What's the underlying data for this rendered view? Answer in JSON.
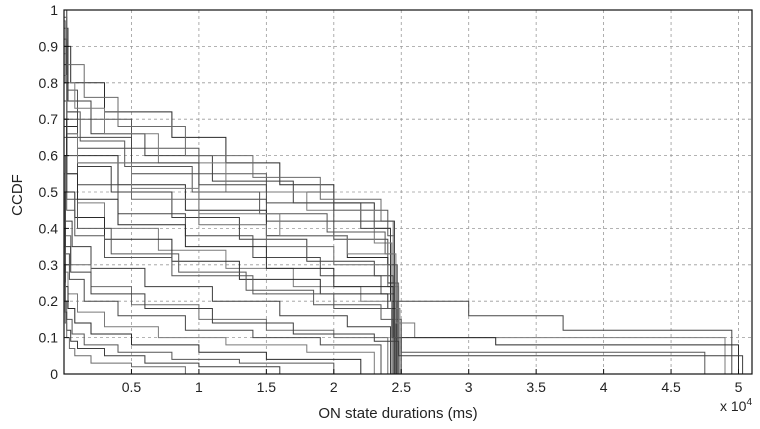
{
  "chart_data": {
    "type": "line",
    "title": "",
    "xlabel": "ON state durations (ms)",
    "ylabel": "CCDF",
    "x_multiplier_label": "x 10",
    "x_multiplier_exponent": "4",
    "xlim": [
      0,
      5.1
    ],
    "ylim": [
      0,
      1
    ],
    "x_unit_scale": 10000,
    "xticks": [
      0.5,
      1,
      1.5,
      2,
      2.5,
      3,
      3.5,
      4,
      4.5,
      5
    ],
    "xtick_labels": [
      "0.5",
      "1",
      "1.5",
      "2",
      "2.5",
      "3",
      "3.5",
      "4",
      "4.5",
      "5"
    ],
    "yticks": [
      0,
      0.1,
      0.2,
      0.3,
      0.4,
      0.5,
      0.6,
      0.7,
      0.8,
      0.9,
      1
    ],
    "ytick_labels": [
      "0",
      "0.1",
      "0.2",
      "0.3",
      "0.4",
      "0.5",
      "0.6",
      "0.7",
      "0.8",
      "0.9",
      "1"
    ],
    "grid": true,
    "legend": "none",
    "series_color": "#3a3a3a",
    "series": [
      {
        "x": [
          0,
          0.02,
          0.05,
          0.3,
          0.8,
          1.2,
          1.6,
          2.0,
          2.3,
          2.42,
          2.47
        ],
        "y": [
          1,
          0.9,
          0.8,
          0.72,
          0.65,
          0.58,
          0.52,
          0.47,
          0.4,
          0.2,
          0
        ]
      },
      {
        "x": [
          0,
          0.02,
          0.1,
          0.5,
          1.0,
          1.5,
          2.0,
          2.4,
          2.45,
          2.5
        ],
        "y": [
          0.98,
          0.78,
          0.7,
          0.62,
          0.55,
          0.5,
          0.45,
          0.38,
          0.15,
          0
        ]
      },
      {
        "x": [
          0,
          0.03,
          0.2,
          0.6,
          1.1,
          1.7,
          2.2,
          2.42,
          2.46
        ],
        "y": [
          0.95,
          0.75,
          0.66,
          0.6,
          0.53,
          0.47,
          0.4,
          0.3,
          0
        ]
      },
      {
        "x": [
          0,
          0.02,
          0.15,
          0.4,
          0.9,
          1.4,
          1.9,
          2.35,
          2.44,
          2.48
        ],
        "y": [
          1,
          0.85,
          0.76,
          0.68,
          0.6,
          0.54,
          0.48,
          0.42,
          0.25,
          0
        ]
      },
      {
        "x": [
          0,
          0.02,
          0.1,
          0.5,
          1.0,
          1.5,
          2.0,
          2.4,
          2.47
        ],
        "y": [
          0.9,
          0.7,
          0.62,
          0.55,
          0.48,
          0.42,
          0.37,
          0.3,
          0
        ]
      },
      {
        "x": [
          0,
          0.01,
          0.08,
          0.3,
          0.7,
          1.2,
          1.8,
          2.3,
          2.43,
          2.49
        ],
        "y": [
          0.97,
          0.8,
          0.73,
          0.66,
          0.58,
          0.5,
          0.45,
          0.36,
          0.18,
          0
        ]
      },
      {
        "x": [
          0,
          0.02,
          0.1,
          0.4,
          0.9,
          1.5,
          2.1,
          2.4,
          2.46
        ],
        "y": [
          0.85,
          0.68,
          0.6,
          0.52,
          0.45,
          0.38,
          0.32,
          0.25,
          0
        ]
      },
      {
        "x": [
          0,
          0.02,
          0.12,
          0.45,
          0.95,
          1.45,
          1.95,
          2.38,
          2.45
        ],
        "y": [
          0.92,
          0.72,
          0.64,
          0.57,
          0.5,
          0.44,
          0.39,
          0.33,
          0
        ]
      },
      {
        "x": [
          0,
          0.02,
          0.1,
          0.35,
          0.8,
          1.3,
          1.8,
          2.3,
          2.44
        ],
        "y": [
          0.8,
          0.65,
          0.57,
          0.5,
          0.43,
          0.37,
          0.31,
          0.27,
          0
        ]
      },
      {
        "x": [
          0,
          0.02,
          0.1,
          0.5,
          1.0,
          1.5,
          2.0,
          2.4,
          2.48
        ],
        "y": [
          0.88,
          0.66,
          0.58,
          0.48,
          0.41,
          0.35,
          0.3,
          0.24,
          0
        ]
      },
      {
        "x": [
          0,
          0.02,
          0.1,
          0.4,
          0.9,
          1.4,
          1.9,
          2.35,
          2.45
        ],
        "y": [
          0.75,
          0.6,
          0.52,
          0.44,
          0.38,
          0.32,
          0.27,
          0.22,
          0
        ]
      },
      {
        "x": [
          0,
          0.02,
          0.1,
          0.3,
          0.7,
          1.2,
          1.7,
          2.2,
          2.43
        ],
        "y": [
          0.7,
          0.55,
          0.47,
          0.4,
          0.34,
          0.29,
          0.24,
          0.2,
          0
        ]
      },
      {
        "x": [
          0,
          0.02,
          0.08,
          0.3,
          0.8,
          1.3,
          1.9,
          2.4,
          2.46
        ],
        "y": [
          0.68,
          0.5,
          0.43,
          0.37,
          0.31,
          0.26,
          0.22,
          0.18,
          0
        ]
      },
      {
        "x": [
          0,
          0.02,
          0.1,
          0.35,
          0.85,
          1.35,
          1.85,
          2.35,
          2.44
        ],
        "y": [
          0.65,
          0.48,
          0.4,
          0.33,
          0.28,
          0.23,
          0.19,
          0.15,
          0
        ]
      },
      {
        "x": [
          0,
          0.01,
          0.06,
          0.2,
          0.6,
          1.1,
          1.6,
          2.1,
          2.42
        ],
        "y": [
          0.6,
          0.42,
          0.35,
          0.29,
          0.24,
          0.2,
          0.16,
          0.13,
          0
        ]
      },
      {
        "x": [
          0,
          0.01,
          0.05,
          0.2,
          0.5,
          1.0,
          1.5,
          2.0,
          2.4
        ],
        "y": [
          0.55,
          0.38,
          0.3,
          0.24,
          0.19,
          0.15,
          0.12,
          0.1,
          0
        ]
      },
      {
        "x": [
          0,
          0.01,
          0.04,
          0.15,
          0.4,
          0.9,
          1.4,
          1.9,
          2.35
        ],
        "y": [
          0.5,
          0.33,
          0.26,
          0.2,
          0.16,
          0.12,
          0.1,
          0.08,
          0
        ]
      },
      {
        "x": [
          0,
          0.01,
          0.03,
          0.1,
          0.3,
          0.7,
          1.2,
          1.8,
          2.3
        ],
        "y": [
          0.45,
          0.28,
          0.22,
          0.17,
          0.13,
          0.1,
          0.08,
          0.06,
          0
        ]
      },
      {
        "x": [
          0,
          0.01,
          0.03,
          0.08,
          0.2,
          0.5,
          1.0,
          1.5,
          2.2
        ],
        "y": [
          0.4,
          0.24,
          0.18,
          0.14,
          0.11,
          0.08,
          0.06,
          0.04,
          0
        ]
      },
      {
        "x": [
          0,
          0.01,
          0.02,
          0.06,
          0.15,
          0.4,
          0.8,
          1.3,
          2.0
        ],
        "y": [
          0.35,
          0.2,
          0.15,
          0.11,
          0.08,
          0.06,
          0.04,
          0.03,
          0
        ]
      },
      {
        "x": [
          0,
          0.01,
          0.02,
          0.05,
          0.1,
          0.3,
          0.6,
          1.0,
          1.6
        ],
        "y": [
          0.3,
          0.17,
          0.12,
          0.09,
          0.07,
          0.05,
          0.03,
          0.02,
          0
        ]
      },
      {
        "x": [
          0,
          0.01,
          0.02,
          0.04,
          0.08,
          0.2,
          0.5,
          0.9
        ],
        "y": [
          0.25,
          0.14,
          0.1,
          0.07,
          0.05,
          0.03,
          0.02,
          0
        ]
      },
      {
        "x": [
          0,
          0.02,
          0.1,
          0.5,
          1.0,
          1.5,
          2.0,
          2.45,
          3.0,
          3.7,
          4.9,
          4.95
        ],
        "y": [
          0.9,
          0.72,
          0.65,
          0.58,
          0.52,
          0.47,
          0.42,
          0.2,
          0.16,
          0.12,
          0.12,
          0
        ]
      },
      {
        "x": [
          0,
          0.02,
          0.1,
          0.5,
          1.0,
          1.6,
          2.1,
          2.46,
          2.6,
          4.8,
          4.9
        ],
        "y": [
          0.82,
          0.66,
          0.58,
          0.51,
          0.44,
          0.38,
          0.33,
          0.14,
          0.1,
          0.1,
          0
        ]
      },
      {
        "x": [
          0,
          0.02,
          0.1,
          0.4,
          0.9,
          1.5,
          2.0,
          2.44,
          3.2,
          4.98,
          5.0
        ],
        "y": [
          0.7,
          0.55,
          0.48,
          0.41,
          0.35,
          0.29,
          0.24,
          0.1,
          0.08,
          0.08,
          0
        ]
      },
      {
        "x": [
          0,
          0.02,
          0.08,
          0.3,
          0.8,
          1.4,
          2.0,
          2.43,
          2.5,
          4.7,
          4.75
        ],
        "y": [
          0.6,
          0.45,
          0.38,
          0.32,
          0.27,
          0.22,
          0.18,
          0.1,
          0.06,
          0.06,
          0
        ]
      },
      {
        "x": [
          0,
          0.01,
          0.05,
          0.2,
          0.6,
          1.1,
          1.7,
          2.3,
          2.48,
          5.0,
          5.03
        ],
        "y": [
          0.5,
          0.35,
          0.28,
          0.22,
          0.18,
          0.14,
          0.11,
          0.09,
          0.05,
          0.05,
          0
        ]
      }
    ]
  }
}
